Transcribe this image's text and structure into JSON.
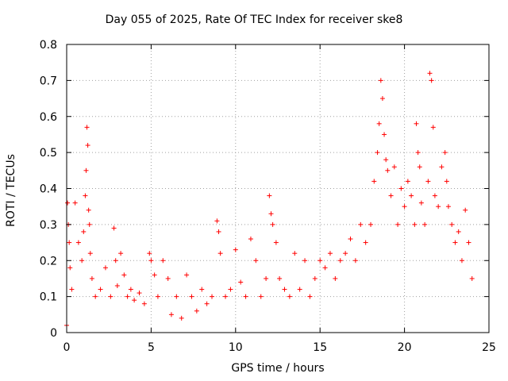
{
  "chart_data": {
    "type": "scatter",
    "title": "Day 055 of 2025, Rate Of TEC Index for receiver ske8",
    "xlabel": "GPS time / hours",
    "ylabel": "ROTI / TECUs",
    "xlim": [
      0,
      25
    ],
    "ylim": [
      0,
      0.8
    ],
    "xticks": [
      "0",
      "5",
      "10",
      "15",
      "20",
      "25"
    ],
    "xtick_values": [
      0,
      5,
      10,
      15,
      20,
      25
    ],
    "yticks": [
      "0",
      "0.1",
      "0.2",
      "0.3",
      "0.4",
      "0.5",
      "0.6",
      "0.7",
      "0.8"
    ],
    "ytick_values": [
      0,
      0.1,
      0.2,
      0.3,
      0.4,
      0.5,
      0.6,
      0.7,
      0.8
    ],
    "grid": true,
    "marker": "+",
    "color": "#ff0000",
    "series": [
      {
        "name": "ROTI",
        "x": [
          0.0,
          0.05,
          0.1,
          0.15,
          0.2,
          0.3,
          0.5,
          0.7,
          0.9,
          1.0,
          1.1,
          1.15,
          1.2,
          1.25,
          1.3,
          1.35,
          1.4,
          1.5,
          1.7,
          2.0,
          2.3,
          2.6,
          2.8,
          2.9,
          3.0,
          3.2,
          3.4,
          3.6,
          3.8,
          4.0,
          4.3,
          4.6,
          4.9,
          5.0,
          5.2,
          5.4,
          5.7,
          6.0,
          6.2,
          6.5,
          6.8,
          7.1,
          7.4,
          7.7,
          8.0,
          8.3,
          8.6,
          8.9,
          9.0,
          9.1,
          9.4,
          9.7,
          10.0,
          10.3,
          10.6,
          10.9,
          11.2,
          11.5,
          11.8,
          12.0,
          12.1,
          12.2,
          12.4,
          12.6,
          12.9,
          13.2,
          13.5,
          13.8,
          14.1,
          14.4,
          14.7,
          15.0,
          15.3,
          15.6,
          15.9,
          16.2,
          16.5,
          16.8,
          17.1,
          17.4,
          17.7,
          18.0,
          18.2,
          18.4,
          18.5,
          18.6,
          18.7,
          18.8,
          18.9,
          19.0,
          19.2,
          19.4,
          19.6,
          19.8,
          20.0,
          20.2,
          20.4,
          20.6,
          20.7,
          20.8,
          20.9,
          21.0,
          21.2,
          21.4,
          21.5,
          21.6,
          21.7,
          21.8,
          22.0,
          22.2,
          22.4,
          22.5,
          22.6,
          22.8,
          23.0,
          23.2,
          23.4,
          23.6,
          23.8,
          24.0
        ],
        "y": [
          0.02,
          0.36,
          0.3,
          0.25,
          0.18,
          0.12,
          0.36,
          0.25,
          0.2,
          0.28,
          0.38,
          0.45,
          0.57,
          0.52,
          0.34,
          0.3,
          0.22,
          0.15,
          0.1,
          0.12,
          0.18,
          0.1,
          0.29,
          0.2,
          0.13,
          0.22,
          0.16,
          0.1,
          0.12,
          0.09,
          0.11,
          0.08,
          0.22,
          0.2,
          0.16,
          0.1,
          0.2,
          0.15,
          0.05,
          0.1,
          0.04,
          0.16,
          0.1,
          0.06,
          0.12,
          0.08,
          0.1,
          0.31,
          0.28,
          0.22,
          0.1,
          0.12,
          0.23,
          0.14,
          0.1,
          0.26,
          0.2,
          0.1,
          0.15,
          0.38,
          0.33,
          0.3,
          0.25,
          0.15,
          0.12,
          0.1,
          0.22,
          0.12,
          0.2,
          0.1,
          0.15,
          0.2,
          0.18,
          0.22,
          0.15,
          0.2,
          0.22,
          0.26,
          0.2,
          0.3,
          0.25,
          0.3,
          0.42,
          0.5,
          0.58,
          0.7,
          0.65,
          0.55,
          0.48,
          0.45,
          0.38,
          0.46,
          0.3,
          0.4,
          0.35,
          0.42,
          0.38,
          0.3,
          0.58,
          0.5,
          0.46,
          0.36,
          0.3,
          0.42,
          0.72,
          0.7,
          0.57,
          0.38,
          0.35,
          0.46,
          0.5,
          0.42,
          0.35,
          0.3,
          0.25,
          0.28,
          0.2,
          0.34,
          0.25,
          0.15
        ]
      }
    ]
  }
}
